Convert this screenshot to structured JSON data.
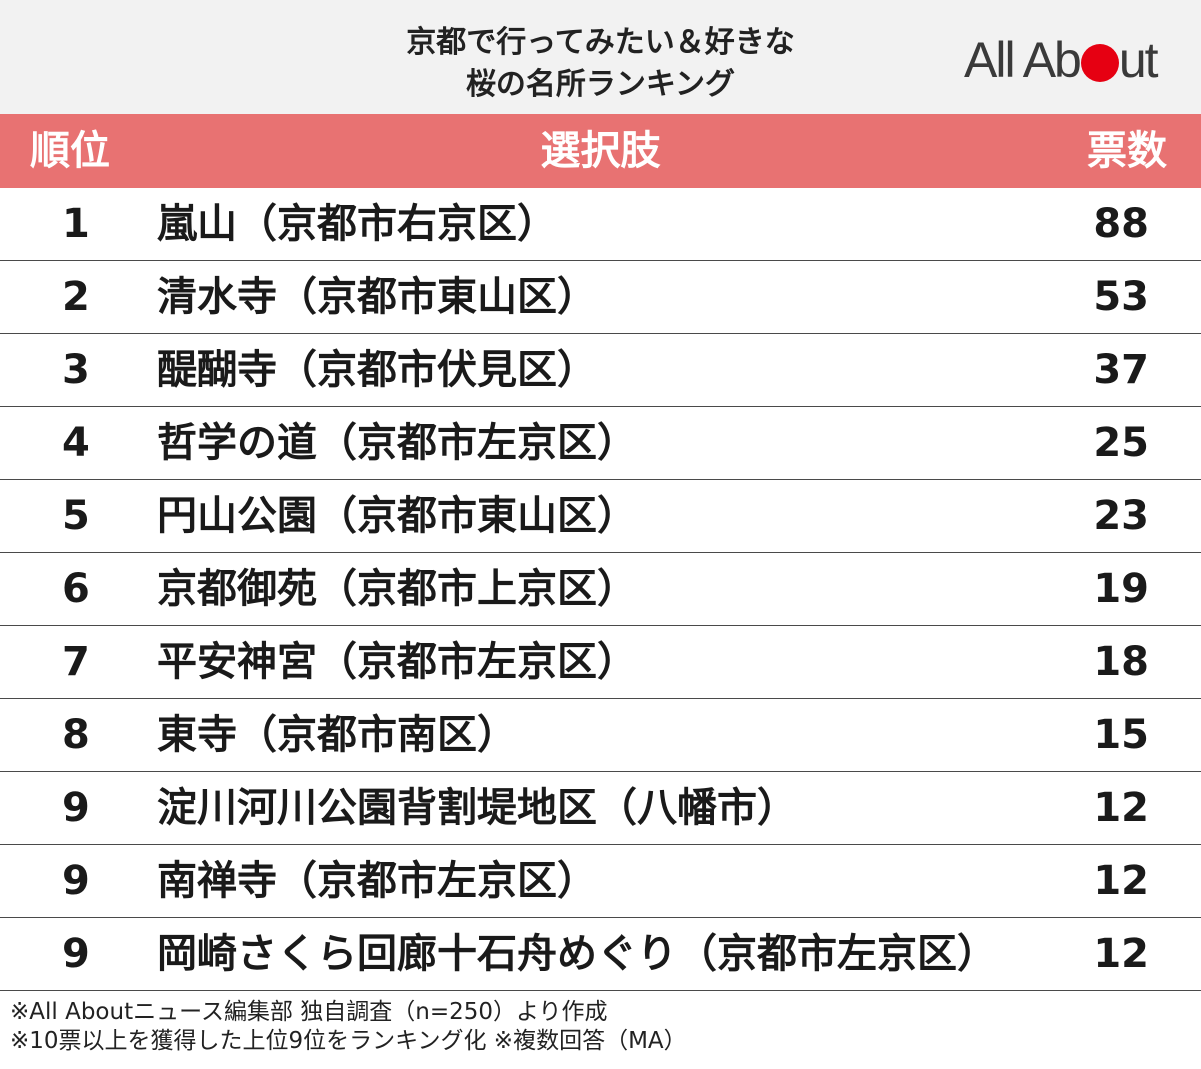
{
  "title": {
    "line1": "京都で行ってみたい＆好きな",
    "line2": "桜の名所ランキング"
  },
  "logo": {
    "text_left": "All Ab",
    "text_right": "ut"
  },
  "colors": {
    "header_bg": "#e87272",
    "title_bg": "#f2f2f2",
    "logo_dot": "#e60012"
  },
  "header": {
    "rank": "順位",
    "choice": "選択肢",
    "votes": "票数"
  },
  "chart_data": {
    "type": "table",
    "columns": [
      "順位",
      "選択肢",
      "票数"
    ],
    "rows": [
      {
        "rank": "1",
        "choice": "嵐山（京都市右京区）",
        "votes": "88"
      },
      {
        "rank": "2",
        "choice": "清水寺（京都市東山区）",
        "votes": "53"
      },
      {
        "rank": "3",
        "choice": "醍醐寺（京都市伏見区）",
        "votes": "37"
      },
      {
        "rank": "4",
        "choice": "哲学の道（京都市左京区）",
        "votes": "25"
      },
      {
        "rank": "5",
        "choice": "円山公園（京都市東山区）",
        "votes": "23"
      },
      {
        "rank": "6",
        "choice": "京都御苑（京都市上京区）",
        "votes": "19"
      },
      {
        "rank": "7",
        "choice": "平安神宮（京都市左京区）",
        "votes": "18"
      },
      {
        "rank": "8",
        "choice": "東寺（京都市南区）",
        "votes": "15"
      },
      {
        "rank": "9",
        "choice": "淀川河川公園背割堤地区（八幡市）",
        "votes": "12"
      },
      {
        "rank": "9",
        "choice": "南禅寺（京都市左京区）",
        "votes": "12"
      },
      {
        "rank": "9",
        "choice": "岡崎さくら回廊十石舟めぐり（京都市左京区）",
        "votes": "12"
      }
    ]
  },
  "notes": {
    "line1": "※All Aboutニュース編集部 独自調査（n=250）より作成",
    "line2": "※10票以上を獲得した上位9位をランキング化 ※複数回答（MA）"
  }
}
